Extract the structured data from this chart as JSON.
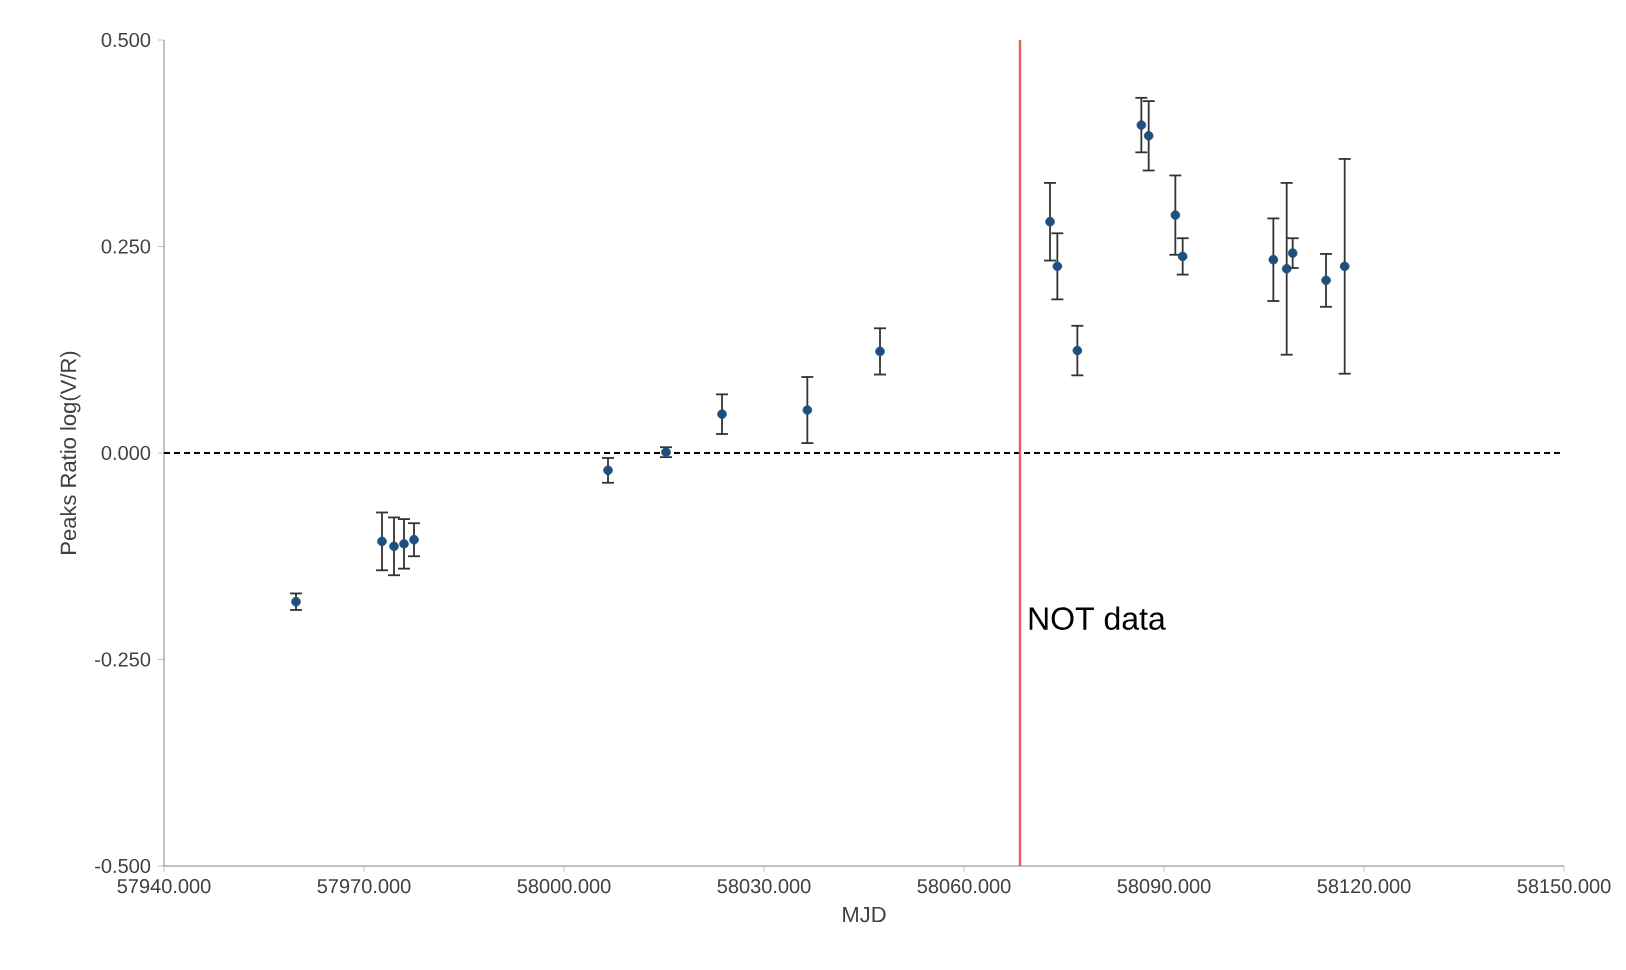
{
  "chart_data": {
    "type": "scatter",
    "xlabel": "MJD",
    "ylabel": "Peaks Ratio    log(V/R)",
    "x": [
      57959.8,
      57972.7,
      57974.5,
      57976.0,
      57977.5,
      58006.6,
      58015.3,
      58023.7,
      58036.5,
      58047.4,
      58072.9,
      58074.0,
      58077.0,
      58086.6,
      58087.7,
      58091.7,
      58092.8,
      58106.4,
      58108.4,
      58109.3,
      58114.3,
      58117.1
    ],
    "series": [
      {
        "color": "#1f4f7f",
        "values": [
          -0.18,
          -0.107,
          -0.113,
          -0.11,
          -0.105,
          -0.021,
          0.001,
          0.047,
          0.052,
          0.123,
          0.28,
          0.226,
          0.124,
          0.397,
          0.384,
          0.288,
          0.238,
          0.234,
          0.223,
          0.242,
          0.209,
          0.226
        ],
        "errors": [
          0.01,
          0.035,
          0.035,
          0.03,
          0.02,
          0.015,
          0.006,
          0.024,
          0.04,
          0.028,
          0.047,
          0.04,
          0.03,
          0.033,
          0.042,
          0.048,
          0.022,
          0.05,
          0.104,
          0.018,
          0.032,
          0.13
        ]
      }
    ],
    "marker": "circle",
    "xlim": [
      57940,
      58150
    ],
    "xticks": [
      {
        "value": 57940,
        "label": "57940.000"
      },
      {
        "value": 57970,
        "label": "57970.000"
      },
      {
        "value": 58000,
        "label": "58000.000"
      },
      {
        "value": 58030,
        "label": "58030.000"
      },
      {
        "value": 58060,
        "label": "58060.000"
      },
      {
        "value": 58090,
        "label": "58090.000"
      },
      {
        "value": 58120,
        "label": "58120.000"
      },
      {
        "value": 58150,
        "label": "58150.000"
      }
    ],
    "ylim": [
      -0.5,
      0.5
    ],
    "yticks": [
      {
        "value": -0.5,
        "label": "-0.500"
      },
      {
        "value": -0.25,
        "label": "-0.250"
      },
      {
        "value": 0,
        "label": "0.000"
      },
      {
        "value": 0.25,
        "label": "0.250"
      },
      {
        "value": 0.5,
        "label": "0.500"
      }
    ],
    "ref_lines": [
      {
        "axis": "y",
        "value": 0,
        "color": "#000000",
        "line_style": "dashed"
      },
      {
        "axis": "x",
        "value": 58068.4,
        "label": "NOT  data",
        "color": "#e06060",
        "line_style": "solid"
      }
    ],
    "grid": false
  }
}
